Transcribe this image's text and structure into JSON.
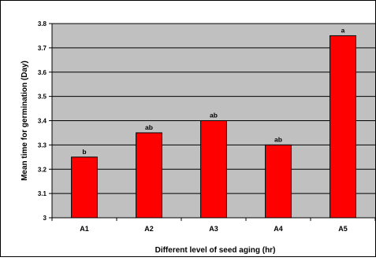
{
  "chart_data": {
    "type": "bar",
    "title": "",
    "xlabel": "Different level of seed aging (hr)",
    "ylabel": "Mean time for germination (Day)",
    "categories": [
      "A1",
      "A2",
      "A3",
      "A4",
      "A5"
    ],
    "values": [
      3.25,
      3.35,
      3.4,
      3.3,
      3.75
    ],
    "data_labels": [
      "b",
      "ab",
      "ab",
      "ab",
      "a"
    ],
    "ylim": [
      3,
      3.8
    ],
    "yticks": [
      3,
      3.1,
      3.2,
      3.3,
      3.4,
      3.5,
      3.6,
      3.7,
      3.8
    ],
    "ytick_labels": [
      "3",
      "3.1",
      "3.2",
      "3.3",
      "3.4",
      "3.5",
      "3.6",
      "3.7",
      "3.8"
    ],
    "grid": true,
    "legend": "none",
    "colors": {
      "bar_fill": "#ff0000",
      "bar_stroke": "#000000",
      "plot_background": "#c0c0c0",
      "gridline": "#000000",
      "frame": "#000000"
    }
  }
}
